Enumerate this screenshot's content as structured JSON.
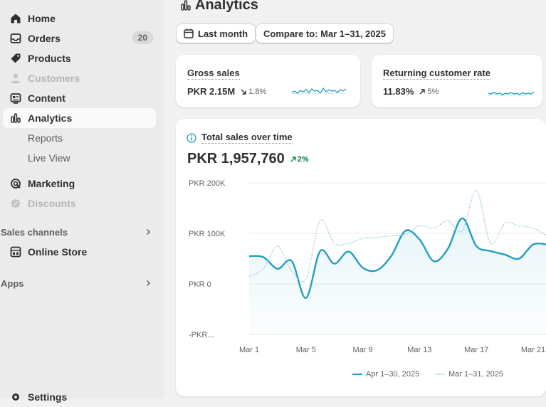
{
  "sidebar": {
    "items": [
      {
        "label": "Home",
        "icon": "home-icon"
      },
      {
        "label": "Orders",
        "icon": "inbox-icon",
        "badge": "20"
      },
      {
        "label": "Products",
        "icon": "tag-icon"
      },
      {
        "label": "Customers",
        "icon": "person-icon"
      },
      {
        "label": "Content",
        "icon": "content-icon"
      },
      {
        "label": "Analytics",
        "icon": "bar-chart-icon"
      },
      {
        "label": "Reports"
      },
      {
        "label": "Live View"
      },
      {
        "label": "Marketing",
        "icon": "target-icon"
      },
      {
        "label": "Discounts",
        "icon": "discount-icon"
      }
    ],
    "sales_channels_label": "Sales channels",
    "online_store_label": "Online Store",
    "apps_label": "Apps",
    "settings_label": "Settings"
  },
  "header": {
    "title": "Analytics",
    "date_filter": "Last month",
    "compare_filter": "Compare to: Mar 1–31, 2025"
  },
  "metrics": [
    {
      "title": "Gross sales",
      "value": "PKR 2.15M",
      "change": "1.8%",
      "direction": "down"
    },
    {
      "title": "Returning customer rate",
      "value": "11.83%",
      "change": "5%",
      "direction": "up"
    }
  ],
  "chart": {
    "title": "Total sales over time",
    "total": "PKR 1,957,760",
    "change": "2%",
    "legend_current": "Apr 1–30, 2025",
    "legend_previous": "Mar 1–31, 2025"
  },
  "chart_data": {
    "type": "line",
    "y_tick_labels": [
      "PKR 200K",
      "PKR 100K",
      "PKR 0",
      "-PKR..."
    ],
    "y_ticks": [
      200000,
      100000,
      0,
      -100000
    ],
    "ylim": [
      -100000,
      200000
    ],
    "x_tick_labels": [
      "Mar 1",
      "Mar 5",
      "Mar 9",
      "Mar 13",
      "Mar 17",
      "Mar 21"
    ],
    "x_ticks": [
      1,
      5,
      9,
      13,
      17,
      21
    ],
    "grid": true,
    "legend_position": "bottom-center",
    "series": [
      {
        "name": "Apr 1–30, 2025",
        "style": "solid",
        "color": "#1f9fc2",
        "x": [
          1,
          2,
          3,
          4,
          5,
          6,
          7,
          8,
          9,
          10,
          11,
          12,
          13,
          14,
          15,
          16,
          17,
          18,
          19,
          20,
          21,
          22
        ],
        "values": [
          55000,
          53000,
          30000,
          45000,
          -28000,
          65000,
          40000,
          64000,
          32000,
          27000,
          55000,
          105000,
          88000,
          45000,
          70000,
          130000,
          75000,
          65000,
          58000,
          50000,
          78000,
          78000
        ]
      },
      {
        "name": "Mar 1–31, 2025",
        "style": "dotted",
        "color": "#8fc7da",
        "x": [
          1,
          2,
          3,
          4,
          5,
          6,
          7,
          8,
          9,
          10,
          11,
          12,
          13,
          14,
          15,
          16,
          17,
          18,
          19,
          20,
          21,
          22
        ],
        "values": [
          15000,
          30000,
          75000,
          25000,
          10000,
          125000,
          80000,
          80000,
          90000,
          92000,
          95000,
          98000,
          115000,
          110000,
          125000,
          105000,
          185000,
          80000,
          120000,
          115000,
          110000,
          95000
        ]
      }
    ]
  },
  "colors": {
    "accent": "#1f9fc2",
    "positive": "#0a7d44"
  }
}
